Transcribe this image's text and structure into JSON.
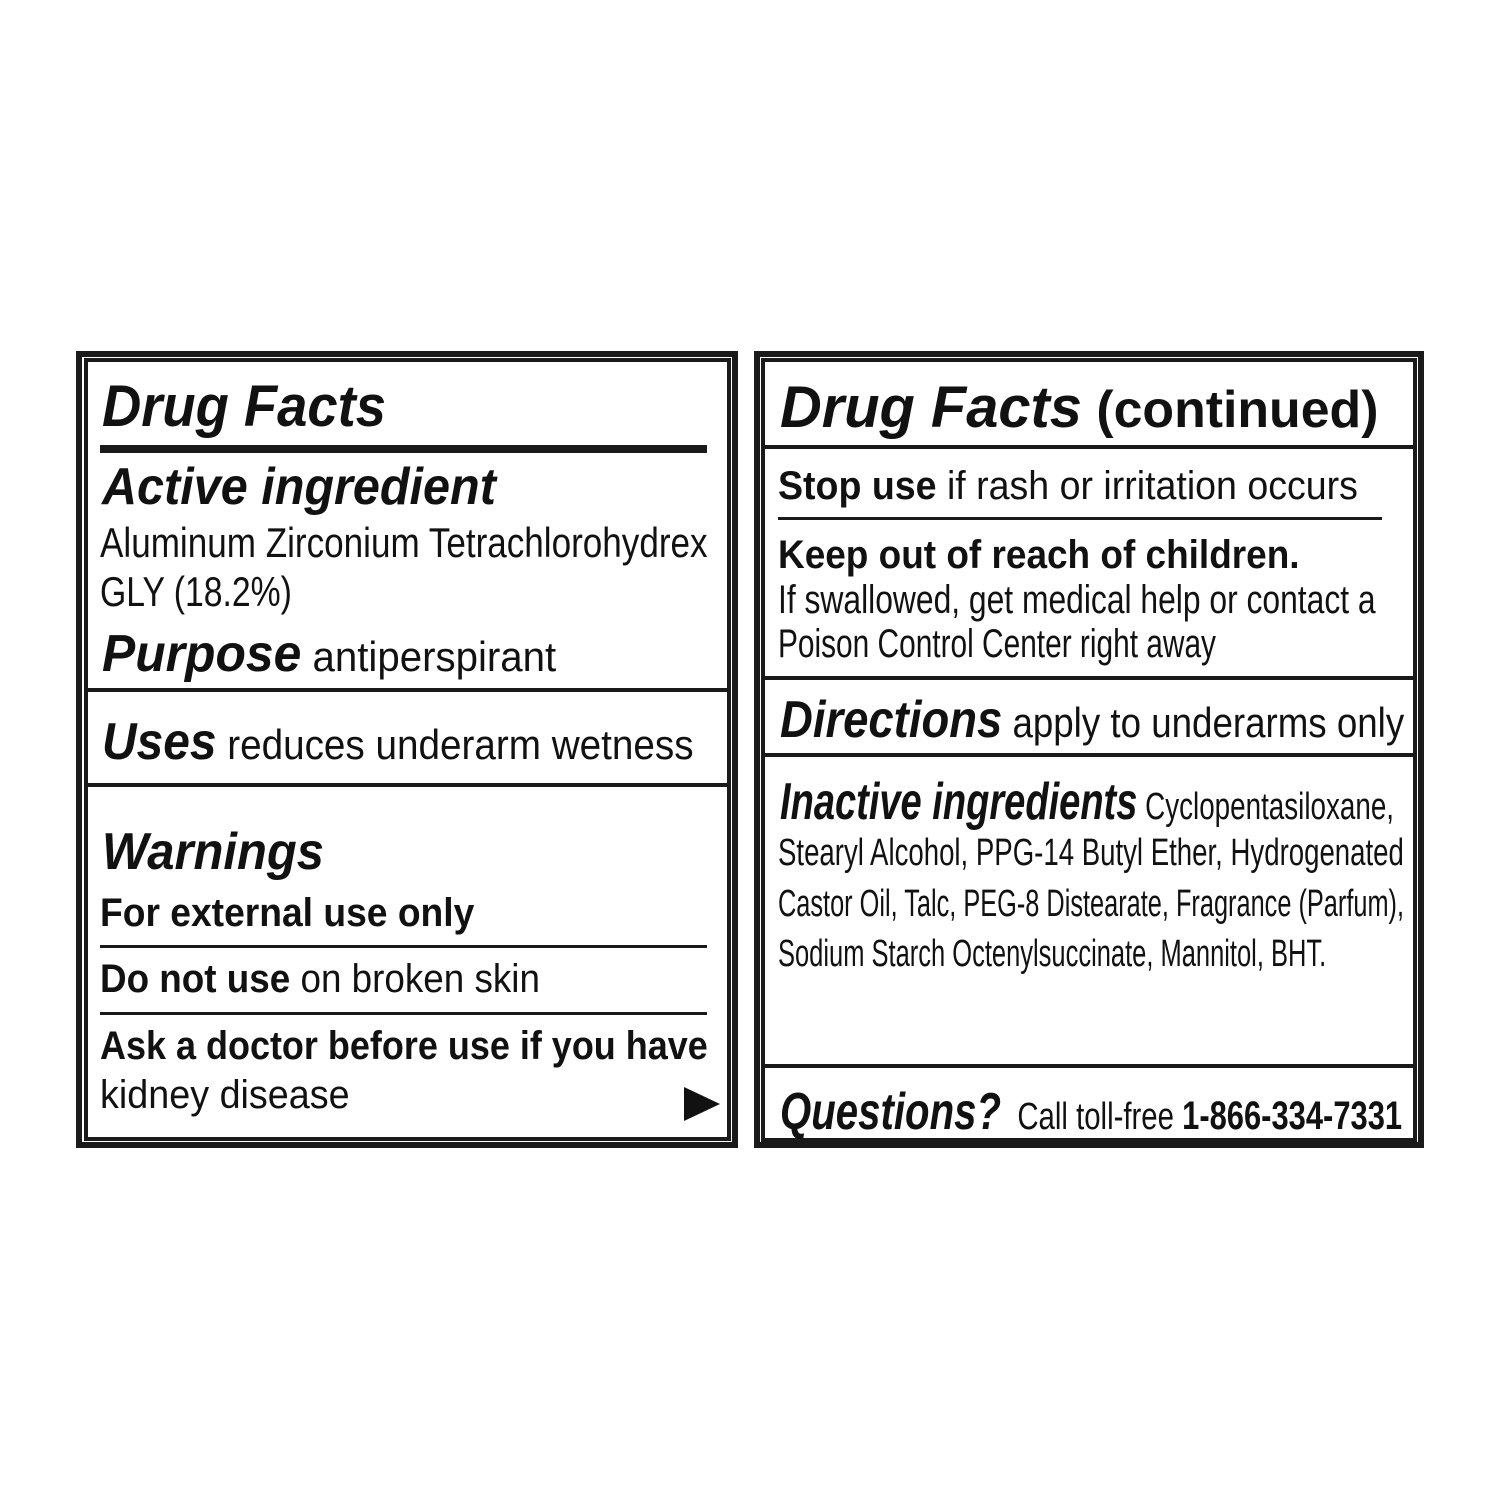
{
  "left_panel": {
    "title": "Drug Facts",
    "active_ingredient": {
      "heading": "Active ingredient",
      "line1": "Aluminum Zirconium Tetrachlorohydrex",
      "line2": "GLY (18.2%)"
    },
    "purpose": {
      "heading": "Purpose",
      "text": "antiperspirant"
    },
    "uses": {
      "heading": "Uses",
      "text": "reduces underarm wetness"
    },
    "warnings": {
      "heading": "Warnings",
      "external": "For external use only",
      "do_not_use_bold": "Do not use",
      "do_not_use_text": " on broken skin",
      "ask_doctor": "Ask a doctor before use if you have",
      "ask_doctor_text": "kidney disease"
    },
    "continue_icon": "right-triangle-arrow"
  },
  "right_panel": {
    "title": "Drug Facts",
    "title_suffix": " (continued)",
    "stop_use_bold": "Stop use",
    "stop_use_text": " if rash or irritation occurs",
    "keep_out": "Keep out of reach of children.",
    "swallowed_line1": "If swallowed, get medical help or contact a",
    "swallowed_line2": "Poison Control Center right away",
    "directions": {
      "heading": "Directions",
      "text": "apply to underarms only"
    },
    "inactive": {
      "heading": "Inactive ingredients",
      "line1": " Cyclopentasiloxane,",
      "line2": "Stearyl Alcohol, PPG-14 Butyl Ether, Hydrogenated",
      "line3": "Castor Oil, Talc, PEG-8 Distearate, Fragrance (Parfum),",
      "line4": "Sodium Starch Octenylsuccinate, Mannitol, BHT."
    },
    "questions": {
      "heading": "Questions?",
      "text": " Call toll-free ",
      "phone": "1-866-334-7331"
    }
  }
}
